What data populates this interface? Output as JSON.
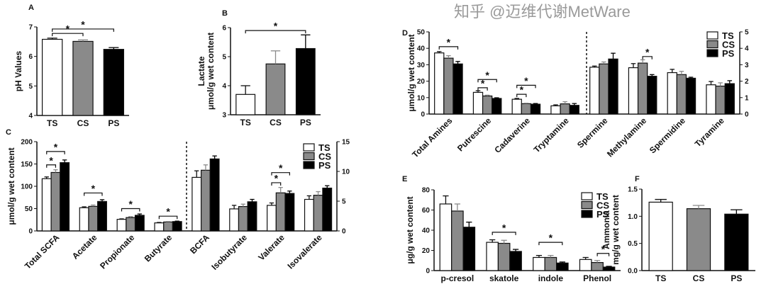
{
  "colors": {
    "TS": "#ffffff",
    "CS": "#8a8a8a",
    "PS": "#000000",
    "stroke": "#111111"
  },
  "legend": [
    "TS",
    "CS",
    "PS"
  ],
  "watermark": "知乎 @迈维代谢MetWare",
  "chart_data": [
    {
      "panel": "A",
      "type": "bar",
      "mode": "single",
      "ylabel": [
        "pH Values"
      ],
      "ylim": [
        4,
        7
      ],
      "yticks": [
        4,
        5,
        6,
        7
      ],
      "categories": [
        "TS",
        "CS",
        "PS"
      ],
      "values": [
        6.58,
        6.51,
        6.24
      ],
      "errors": [
        0.04,
        0.05,
        0.06
      ],
      "significance": [
        {
          "from": 0,
          "to": 1,
          "y": 6.78,
          "label": "*"
        },
        {
          "from": 0,
          "to": 2,
          "y": 6.93,
          "label": "*"
        }
      ]
    },
    {
      "panel": "B",
      "type": "bar",
      "mode": "single",
      "ylabel": [
        "Lactate",
        "μmol/g wet content"
      ],
      "ylim": [
        3,
        6
      ],
      "yticks": [
        3,
        4,
        5,
        6
      ],
      "categories": [
        "TS",
        "CS",
        "PS"
      ],
      "values": [
        3.7,
        4.75,
        5.28
      ],
      "errors": [
        0.3,
        0.45,
        0.47
      ],
      "significance": [
        {
          "from": 0,
          "to": 2,
          "y": 5.9,
          "label": "*"
        }
      ]
    },
    {
      "panel": "C",
      "type": "bar",
      "mode": "grouped",
      "ylabel": [
        "μmol/g wet content"
      ],
      "ylim": [
        0,
        200
      ],
      "yticks": [
        0,
        50,
        100,
        150,
        200
      ],
      "ylim_right": [
        0,
        15
      ],
      "yticks_right": [
        0,
        5,
        10,
        15
      ],
      "legend": "top-right",
      "categories": [
        "Total SCFA",
        "Acetate",
        "Propionate",
        "Butyrate",
        "BCFA",
        "Isobutyrate",
        "Valerate",
        "Isovalerate"
      ],
      "axis": [
        "left",
        "left",
        "left",
        "left",
        "right",
        "right",
        "right",
        "right"
      ],
      "series": [
        {
          "name": "TS",
          "values": [
            117,
            52,
            26,
            18,
            9.0,
            3.7,
            4.3,
            5.3
          ],
          "errors": [
            4,
            2,
            1,
            1,
            1.1,
            0.6,
            0.4,
            0.6
          ]
        },
        {
          "name": "CS",
          "values": [
            131,
            55,
            30,
            20,
            10.2,
            4.1,
            6.4,
            6.0
          ],
          "errors": [
            6,
            3,
            2,
            1,
            0.9,
            0.4,
            0.9,
            0.6
          ]
        },
        {
          "name": "PS",
          "values": [
            153,
            66,
            35,
            21,
            12.1,
            4.9,
            6.3,
            7.2
          ],
          "errors": [
            6,
            4,
            3,
            1,
            0.5,
            0.4,
            0.4,
            0.4
          ]
        }
      ],
      "significance": [
        {
          "cat": 0,
          "from": 0,
          "to": 1,
          "y": 148,
          "label": "*"
        },
        {
          "cat": 0,
          "from": 0,
          "to": 2,
          "y": 178,
          "label": "*"
        },
        {
          "cat": 1,
          "from": 0,
          "to": 2,
          "y": 85,
          "label": "*"
        },
        {
          "cat": 2,
          "from": 0,
          "to": 2,
          "y": 50,
          "label": "*"
        },
        {
          "cat": 3,
          "from": 0,
          "to": 2,
          "y": 33,
          "label": "*"
        },
        {
          "cat": 6,
          "from": 0,
          "to": 1,
          "y": 8.1,
          "label": "*"
        },
        {
          "cat": 6,
          "from": 0,
          "to": 2,
          "y": 9.8,
          "label": "*"
        }
      ]
    },
    {
      "panel": "D",
      "type": "bar",
      "mode": "grouped",
      "ylabel": [
        "μmol/g wet content"
      ],
      "ylim": [
        0,
        50
      ],
      "yticks": [
        0,
        10,
        20,
        30,
        40,
        50
      ],
      "ylim_right": [
        0,
        5
      ],
      "yticks_right": [
        0,
        1,
        2,
        3,
        4,
        5
      ],
      "legend": "top-right",
      "categories": [
        "Total Amines",
        "Putrescine",
        "Cadaverine",
        "Tryptamine",
        "Spermine",
        "Methylamine",
        "Spermidine",
        "Tyramine"
      ],
      "axis": [
        "left",
        "left",
        "left",
        "left",
        "right",
        "right",
        "right",
        "right"
      ],
      "series": [
        {
          "name": "TS",
          "values": [
            37.2,
            13.2,
            9.0,
            5.0,
            2.85,
            2.82,
            2.52,
            1.78
          ],
          "errors": [
            0.8,
            1.0,
            0.5,
            0.6,
            0.07,
            0.25,
            0.2,
            0.2
          ]
        },
        {
          "name": "CS",
          "values": [
            34.0,
            11.0,
            6.3,
            6.2,
            3.05,
            3.1,
            2.4,
            1.7
          ],
          "errors": [
            1.5,
            0.5,
            0.3,
            1.3,
            0.12,
            0.2,
            0.2,
            0.2
          ]
        },
        {
          "name": "PS",
          "values": [
            30.5,
            9.5,
            6.0,
            5.3,
            3.35,
            2.3,
            2.18,
            1.85
          ],
          "errors": [
            1.5,
            0.4,
            0.4,
            1.1,
            0.35,
            0.1,
            0.06,
            0.18
          ]
        }
      ],
      "significance": [
        {
          "cat": 0,
          "from": 0,
          "to": 2,
          "y": 41,
          "label": "*"
        },
        {
          "cat": 1,
          "from": 0,
          "to": 1,
          "y": 16,
          "label": "*"
        },
        {
          "cat": 1,
          "from": 0,
          "to": 2,
          "y": 21,
          "label": "*"
        },
        {
          "cat": 2,
          "from": 0,
          "to": 1,
          "y": 12,
          "label": "*"
        },
        {
          "cat": 2,
          "from": 0,
          "to": 2,
          "y": 17.5,
          "label": "*"
        },
        {
          "cat": 5,
          "from": 1,
          "to": 2,
          "y": 3.5,
          "label": "*"
        }
      ]
    },
    {
      "panel": "E",
      "type": "bar",
      "mode": "grouped",
      "ylabel": [
        "μg/g wet content"
      ],
      "ylim": [
        0,
        80
      ],
      "yticks": [
        0,
        20,
        40,
        60,
        80
      ],
      "legend": "top-right",
      "categories": [
        "p-cresol",
        "skatole",
        "indole",
        "Phenol"
      ],
      "axis": [
        "left",
        "left",
        "left",
        "left"
      ],
      "series": [
        {
          "name": "TS",
          "values": [
            66,
            28,
            13,
            11
          ],
          "errors": [
            8,
            2.5,
            2,
            2
          ]
        },
        {
          "name": "CS",
          "values": [
            59,
            27,
            13,
            8
          ],
          "errors": [
            7,
            3,
            2,
            2
          ]
        },
        {
          "name": "PS",
          "values": [
            43,
            19,
            7.5,
            3.5
          ],
          "errors": [
            5,
            2,
            1,
            0.7
          ]
        }
      ],
      "significance": [
        {
          "cat": 1,
          "from": 0,
          "to": 2,
          "y": 38,
          "label": "*"
        },
        {
          "cat": 2,
          "from": 0,
          "to": 2,
          "y": 28,
          "label": "*"
        },
        {
          "cat": 3,
          "from": 1,
          "to": 2,
          "y": 17,
          "label": "*"
        }
      ]
    },
    {
      "panel": "F",
      "type": "bar",
      "mode": "single",
      "ylabel": [
        "Ammonia",
        "mg/g wet content"
      ],
      "ylim": [
        0,
        1.5
      ],
      "yticks": [
        0.0,
        0.5,
        1.0,
        1.5
      ],
      "tick_decimals": 1,
      "categories": [
        "TS",
        "CS",
        "PS"
      ],
      "values": [
        1.26,
        1.14,
        1.04
      ],
      "errors": [
        0.05,
        0.06,
        0.08
      ],
      "significance": []
    }
  ]
}
